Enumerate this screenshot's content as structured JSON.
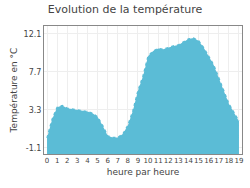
{
  "chart_data": {
    "type": "area",
    "title": "Evolution de la température",
    "x_label": "heure par heure",
    "y_label": "Température en °C",
    "x": [
      0,
      0.5,
      1,
      1.5,
      2,
      2.5,
      3,
      3.5,
      4,
      4.5,
      5,
      5.5,
      6,
      6.5,
      7,
      7.5,
      8,
      8.5,
      9,
      9.5,
      10,
      10.5,
      11,
      11.5,
      12,
      12.5,
      13,
      13.5,
      14,
      14.5,
      15,
      15.5,
      16,
      16.5,
      17,
      17.5,
      18,
      18.5,
      19
    ],
    "values": [
      0.05,
      2.2,
      3.6,
      3.8,
      3.5,
      3.4,
      3.3,
      3.2,
      3.1,
      2.9,
      2.5,
      1.5,
      0.3,
      0.1,
      0.1,
      0.5,
      1.5,
      3.2,
      5.5,
      7.2,
      9.5,
      10.1,
      10.4,
      10.3,
      10.5,
      10.7,
      10.8,
      11.2,
      11.5,
      11.6,
      11.3,
      10.5,
      9.5,
      8.5,
      7.0,
      5.5,
      4.0,
      3.0,
      2.0
    ],
    "color": "#5bbcd6",
    "line_style": "dotted",
    "xlim": [
      -0.3,
      19.3
    ],
    "ylim": [
      -1.8,
      13.0
    ],
    "xticks": [
      0,
      1,
      2,
      3,
      4,
      5,
      6,
      7,
      8,
      9,
      10,
      11,
      12,
      13,
      14,
      15,
      16,
      17,
      18,
      19
    ],
    "yticks": [
      -1.1,
      3.3,
      7.7,
      12.1
    ],
    "grid": true
  }
}
